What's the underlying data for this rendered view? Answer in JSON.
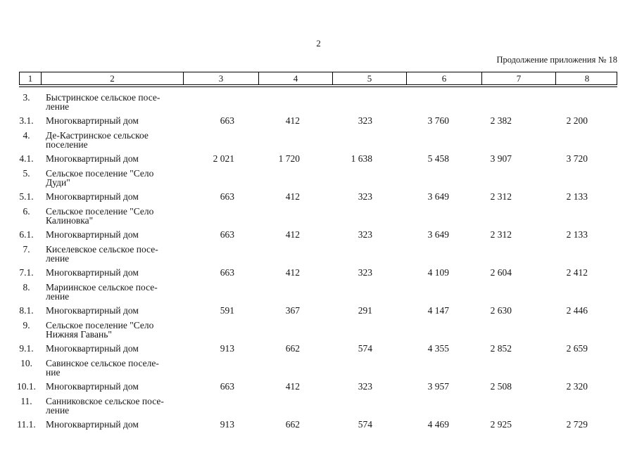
{
  "page": {
    "page_number": "2",
    "continuation_note": "Продолжение приложения № 18"
  },
  "table": {
    "header": [
      "1",
      "2",
      "3",
      "4",
      "5",
      "6",
      "7",
      "8"
    ],
    "rows": [
      {
        "num": "3.",
        "name_line1": "Быстринское сельское посе-",
        "name_line2": "ление",
        "c3": "",
        "c4": "",
        "c5": "",
        "c6": "",
        "c7": "",
        "c8": ""
      },
      {
        "num": "3.1.",
        "name_line1": "Многоквартирный дом",
        "name_line2": "",
        "c3": "663",
        "c4": "412",
        "c5": "323",
        "c6": "3 760",
        "c7": "2 382",
        "c8": "2 200"
      },
      {
        "num": "4.",
        "name_line1": "Де-Кастринское сельское",
        "name_line2": "поселение",
        "c3": "",
        "c4": "",
        "c5": "",
        "c6": "",
        "c7": "",
        "c8": ""
      },
      {
        "num": "4.1.",
        "name_line1": "Многоквартирный дом",
        "name_line2": "",
        "c3": "2 021",
        "c4": "1 720",
        "c5": "1 638",
        "c6": "5 458",
        "c7": "3 907",
        "c8": "3 720"
      },
      {
        "num": "5.",
        "name_line1": "Сельское поселение \"Село",
        "name_line2": "Дуди\"",
        "c3": "",
        "c4": "",
        "c5": "",
        "c6": "",
        "c7": "",
        "c8": ""
      },
      {
        "num": "5.1.",
        "name_line1": "Многоквартирный дом",
        "name_line2": "",
        "c3": "663",
        "c4": "412",
        "c5": "323",
        "c6": "3 649",
        "c7": "2 312",
        "c8": "2 133"
      },
      {
        "num": "6.",
        "name_line1": "Сельское поселение \"Село",
        "name_line2": "Калиновка\"",
        "c3": "",
        "c4": "",
        "c5": "",
        "c6": "",
        "c7": "",
        "c8": ""
      },
      {
        "num": "6.1.",
        "name_line1": "Многоквартирный дом",
        "name_line2": "",
        "c3": "663",
        "c4": "412",
        "c5": "323",
        "c6": "3 649",
        "c7": "2 312",
        "c8": "2 133"
      },
      {
        "num": "7.",
        "name_line1": "Киселевское сельское посе-",
        "name_line2": "ление",
        "c3": "",
        "c4": "",
        "c5": "",
        "c6": "",
        "c7": "",
        "c8": ""
      },
      {
        "num": "7.1.",
        "name_line1": "Многоквартирный дом",
        "name_line2": "",
        "c3": "663",
        "c4": "412",
        "c5": "323",
        "c6": "4 109",
        "c7": "2 604",
        "c8": "2 412"
      },
      {
        "num": "8.",
        "name_line1": "Мариинское сельское посе-",
        "name_line2": "ление",
        "c3": "",
        "c4": "",
        "c5": "",
        "c6": "",
        "c7": "",
        "c8": ""
      },
      {
        "num": "8.1.",
        "name_line1": "Многоквартирный дом",
        "name_line2": "",
        "c3": "591",
        "c4": "367",
        "c5": "291",
        "c6": "4 147",
        "c7": "2 630",
        "c8": "2 446"
      },
      {
        "num": "9.",
        "name_line1": "Сельское поселение \"Село",
        "name_line2": "Нижняя Гавань\"",
        "c3": "",
        "c4": "",
        "c5": "",
        "c6": "",
        "c7": "",
        "c8": ""
      },
      {
        "num": "9.1.",
        "name_line1": "Многоквартирный дом",
        "name_line2": "",
        "c3": "913",
        "c4": "662",
        "c5": "574",
        "c6": "4 355",
        "c7": "2 852",
        "c8": "2 659"
      },
      {
        "num": "10.",
        "name_line1": "Савинское сельское поселе-",
        "name_line2": "ние",
        "c3": "",
        "c4": "",
        "c5": "",
        "c6": "",
        "c7": "",
        "c8": ""
      },
      {
        "num": "10.1.",
        "name_line1": "Многоквартирный дом",
        "name_line2": "",
        "c3": "663",
        "c4": "412",
        "c5": "323",
        "c6": "3 957",
        "c7": "2 508",
        "c8": "2 320"
      },
      {
        "num": "11.",
        "name_line1": "Санниковское сельское посе-",
        "name_line2": "ление",
        "c3": "",
        "c4": "",
        "c5": "",
        "c6": "",
        "c7": "",
        "c8": ""
      },
      {
        "num": "11.1.",
        "name_line1": "Многоквартирный дом",
        "name_line2": "",
        "c3": "913",
        "c4": "662",
        "c5": "574",
        "c6": "4 469",
        "c7": "2 925",
        "c8": "2 729"
      }
    ]
  }
}
